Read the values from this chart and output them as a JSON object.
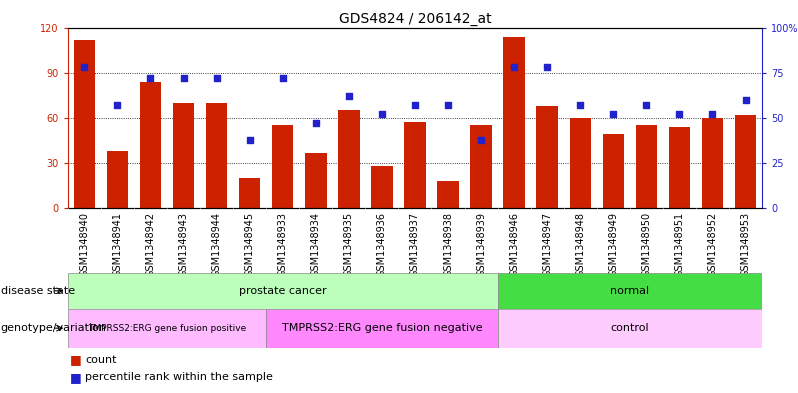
{
  "title": "GDS4824 / 206142_at",
  "samples": [
    "GSM1348940",
    "GSM1348941",
    "GSM1348942",
    "GSM1348943",
    "GSM1348944",
    "GSM1348945",
    "GSM1348933",
    "GSM1348934",
    "GSM1348935",
    "GSM1348936",
    "GSM1348937",
    "GSM1348938",
    "GSM1348939",
    "GSM1348946",
    "GSM1348947",
    "GSM1348948",
    "GSM1348949",
    "GSM1348950",
    "GSM1348951",
    "GSM1348952",
    "GSM1348953"
  ],
  "counts": [
    112,
    38,
    84,
    70,
    70,
    20,
    55,
    37,
    65,
    28,
    57,
    18,
    55,
    114,
    68,
    60,
    49,
    55,
    54,
    60,
    62
  ],
  "percentiles": [
    78,
    57,
    72,
    72,
    72,
    38,
    72,
    47,
    62,
    52,
    57,
    57,
    38,
    78,
    78,
    57,
    52,
    57,
    52,
    52,
    60
  ],
  "bar_color": "#cc2200",
  "dot_color": "#2222cc",
  "ylim_left": [
    0,
    120
  ],
  "ylim_right": [
    0,
    100
  ],
  "yticks_left": [
    0,
    30,
    60,
    90,
    120
  ],
  "yticks_right": [
    0,
    25,
    50,
    75,
    100
  ],
  "ytick_labels_right": [
    "0",
    "25",
    "50",
    "75",
    "100%"
  ],
  "disease_state_groups": [
    {
      "label": "prostate cancer",
      "start": 0,
      "end": 12,
      "color": "#bbffbb"
    },
    {
      "label": "normal",
      "start": 13,
      "end": 20,
      "color": "#44dd44"
    }
  ],
  "genotype_groups": [
    {
      "label": "TMPRSS2:ERG gene fusion positive",
      "start": 0,
      "end": 5,
      "color": "#ffbbff"
    },
    {
      "label": "TMPRSS2:ERG gene fusion negative",
      "start": 6,
      "end": 12,
      "color": "#ff88ff"
    },
    {
      "label": "control",
      "start": 13,
      "end": 20,
      "color": "#ffccff"
    }
  ],
  "row1_label": "disease state",
  "row2_label": "genotype/variation",
  "legend_count_label": "count",
  "legend_pct_label": "percentile rank within the sample",
  "background_color": "#ffffff",
  "title_fontsize": 10,
  "tick_fontsize": 7,
  "label_fontsize": 8,
  "annotation_fontsize": 8,
  "small_annotation_fontsize": 6.5
}
